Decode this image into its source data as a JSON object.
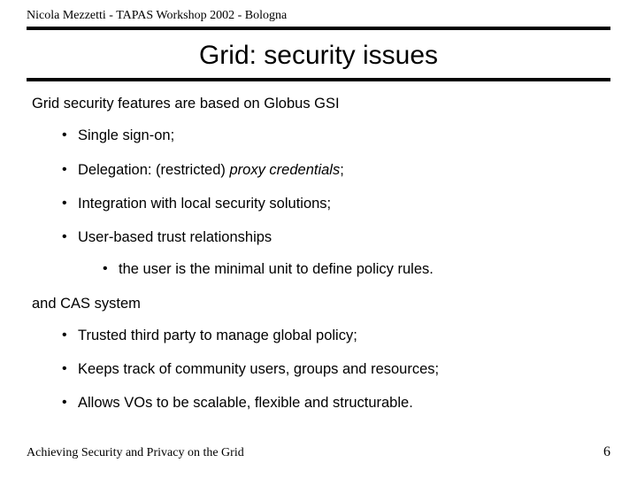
{
  "header": "Nicola Mezzetti - TAPAS Workshop 2002 - Bologna",
  "title": "Grid: security issues",
  "intro": "Grid security features are based on Globus GSI",
  "list1": {
    "i0": "Single sign-on;",
    "i1_pre": "Delegation: (restricted) ",
    "i1_em": "proxy credentials",
    "i1_post": ";",
    "i2": "Integration with local security solutions;",
    "i3": "User-based trust relationships",
    "i3_sub": "the user is the minimal unit to define policy rules."
  },
  "mid": "and CAS system",
  "list2": {
    "i0": "Trusted third party to manage global policy;",
    "i1": "Keeps track of community users, groups and resources;",
    "i2": "Allows VOs to be scalable, flexible and structurable."
  },
  "footer": {
    "left": "Achieving Security and Privacy on the Grid",
    "page": "6"
  }
}
